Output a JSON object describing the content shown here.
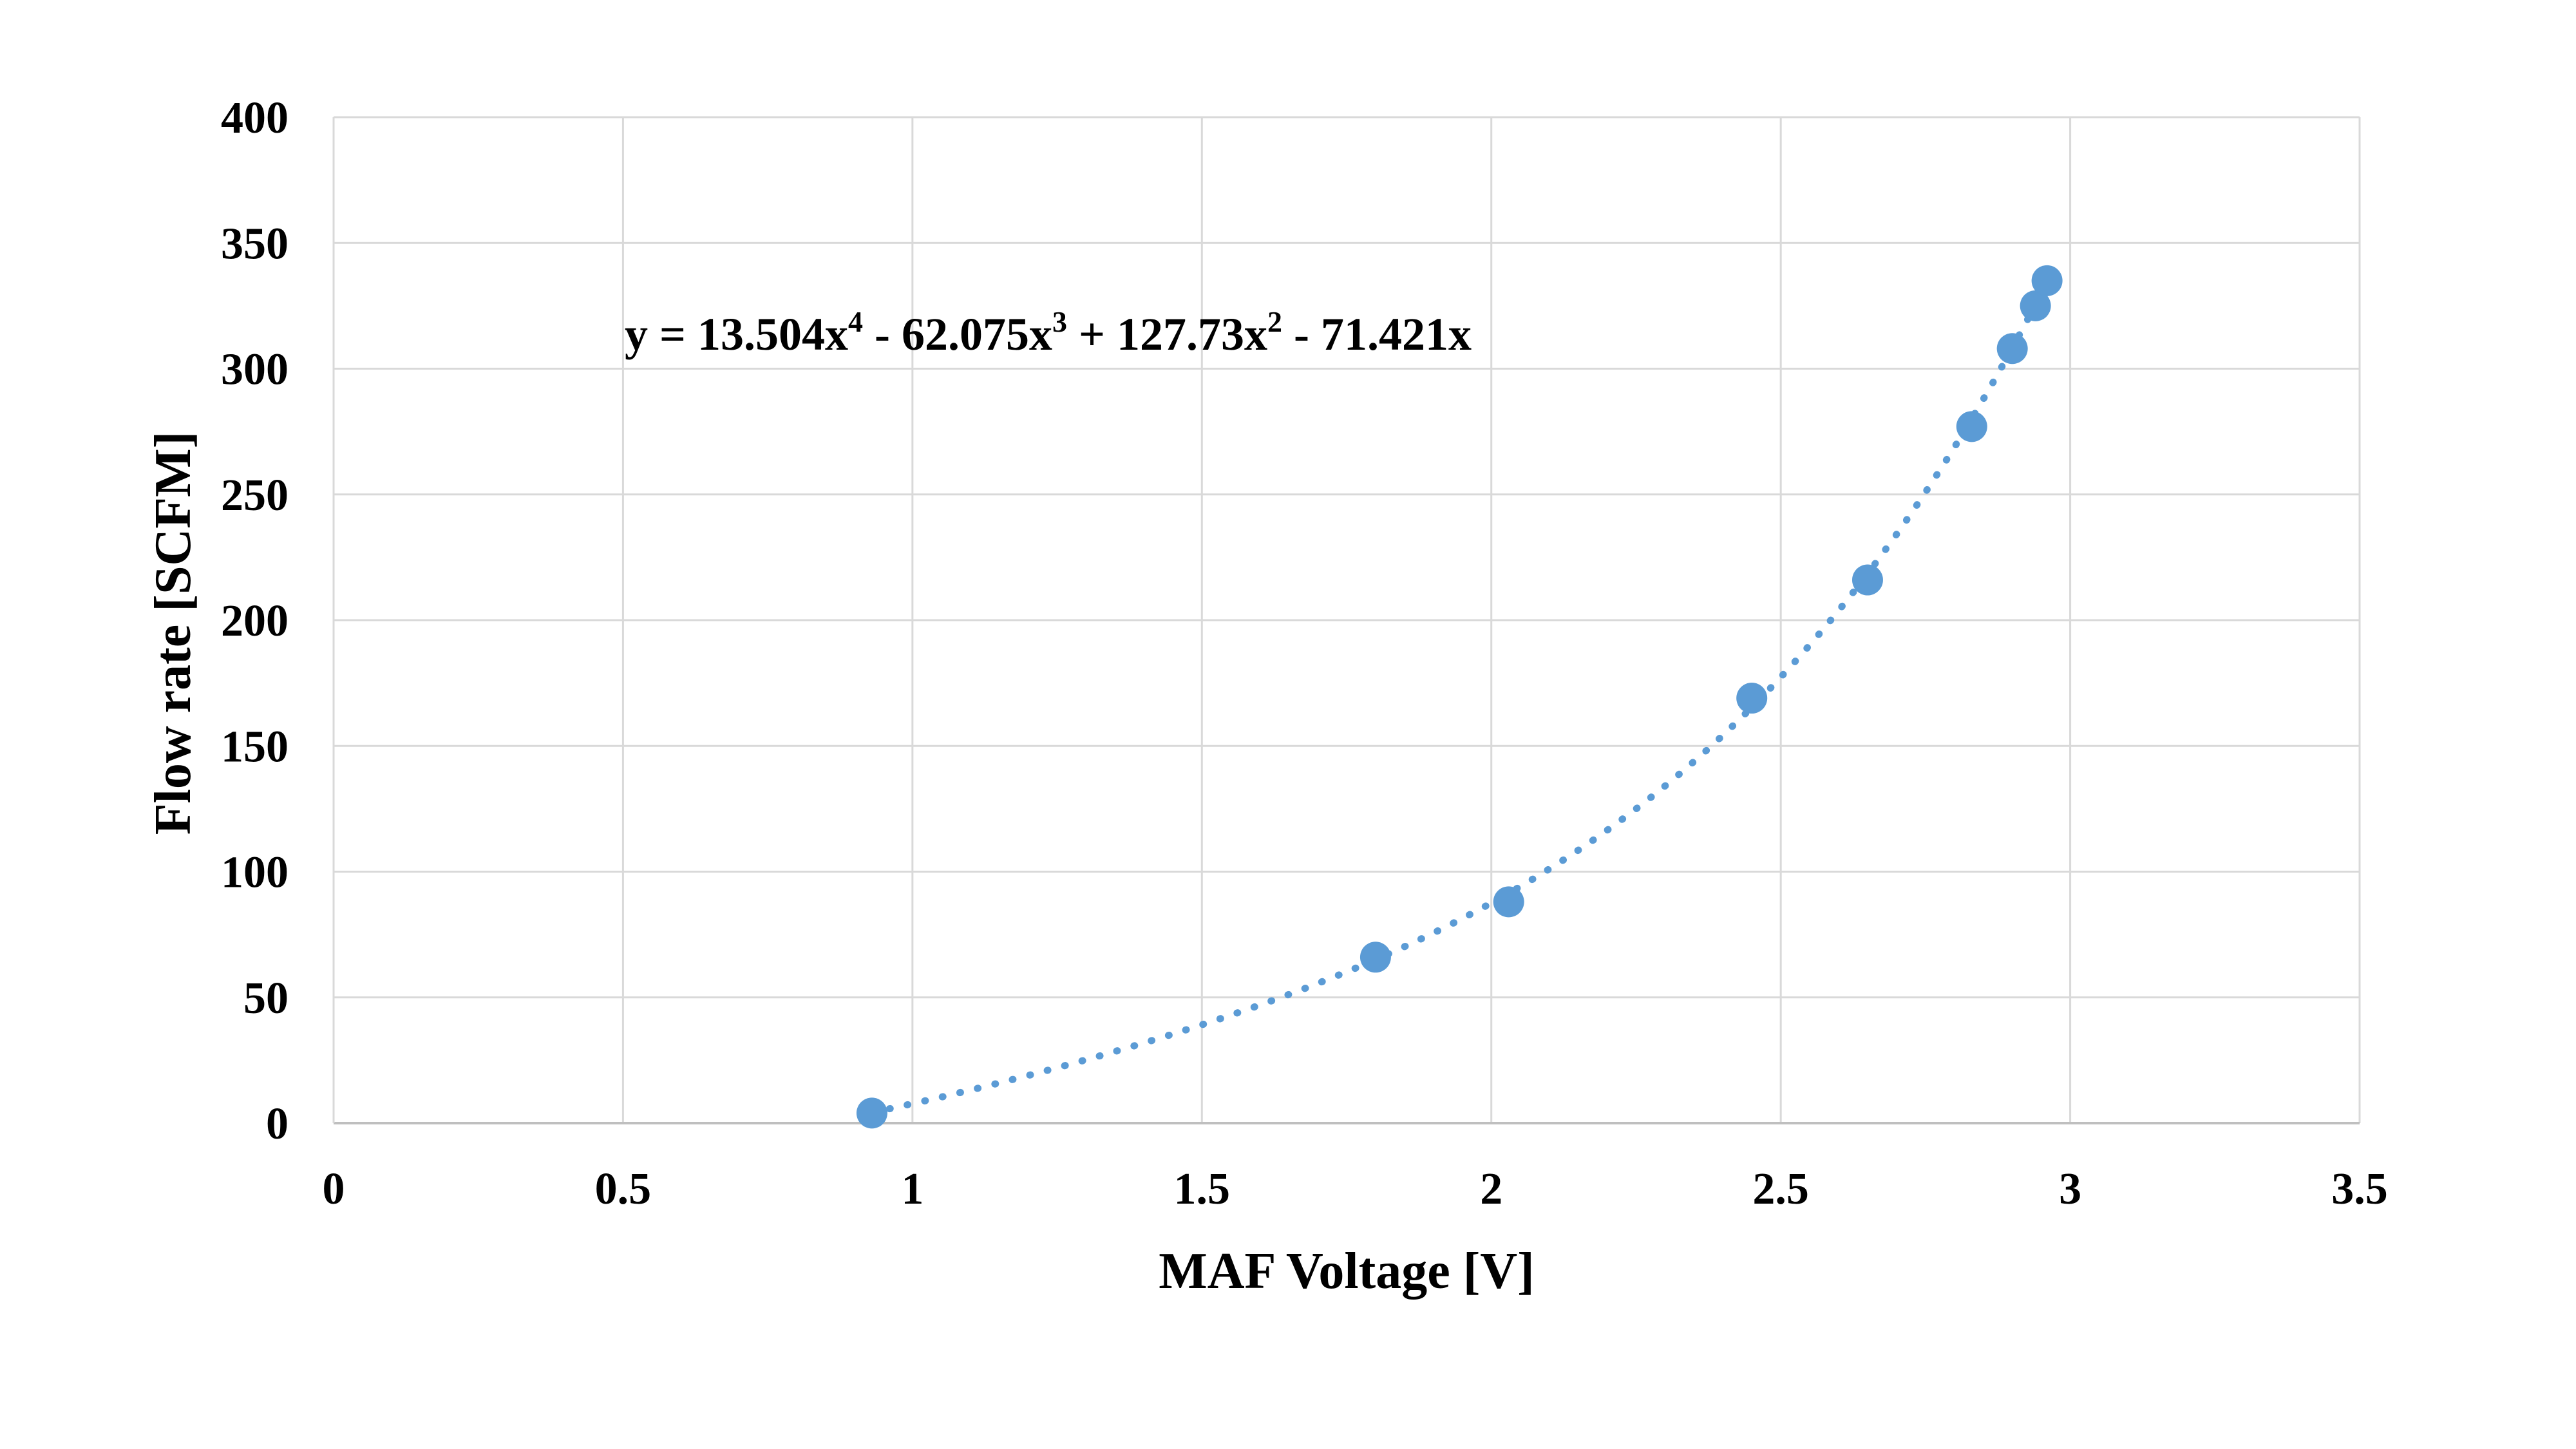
{
  "chart_data": {
    "type": "scatter",
    "title": "",
    "xlabel": "MAF Voltage [V]",
    "ylabel": "Flow rate [SCFM]",
    "xlim": [
      0,
      3.5
    ],
    "ylim": [
      0,
      400
    ],
    "x_ticks": [
      "0",
      "0.5",
      "1",
      "1.5",
      "2",
      "2.5",
      "3",
      "3.5"
    ],
    "y_ticks": [
      "0",
      "50",
      "100",
      "150",
      "200",
      "250",
      "300",
      "350",
      "400"
    ],
    "grid": true,
    "legend": "none",
    "series": [
      {
        "x": [
          0.93,
          1.8,
          2.03,
          2.45,
          2.65,
          2.83,
          2.9,
          2.94,
          2.96
        ],
        "y": [
          4,
          66,
          88,
          169,
          216,
          277,
          308,
          325,
          335
        ],
        "color": "#5B9BD5",
        "marker": "circle"
      }
    ],
    "trendline": {
      "type": "polynomial",
      "order": 4,
      "coefficients": [
        13.504,
        -62.075,
        127.73,
        -71.421,
        0
      ],
      "x_range": [
        0.93,
        2.96
      ],
      "color": "#5B9BD5",
      "style": "dotted",
      "equation": {
        "lead": "y = 13.504x",
        "exp4": "4",
        "term3": " - 62.075x",
        "exp3": "3",
        "term2": " + 127.73x",
        "exp2": "2",
        "term1": " - 71.421x"
      }
    },
    "colors": {
      "grid": "#D9D9D9",
      "axis": "#BFBFBF",
      "series": "#5B9BD5"
    }
  }
}
